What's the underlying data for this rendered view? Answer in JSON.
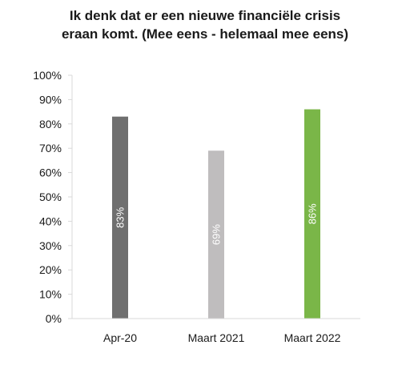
{
  "chart_data": {
    "type": "bar",
    "title_lines": [
      "Ik denk dat er een nieuwe financiële crisis",
      "eraan komt. (Mee eens - helemaal mee eens)"
    ],
    "categories": [
      "Apr-20",
      "Maart 2021",
      "Maart 2022"
    ],
    "values": [
      83,
      69,
      86
    ],
    "data_labels": [
      "83%",
      "69%",
      "86%"
    ],
    "bar_colors": [
      "#6f6f6f",
      "#bfbdbe",
      "#7ab648"
    ],
    "label_color": "#ffffff",
    "ylim": [
      0,
      100
    ],
    "yticks": [
      "0%",
      "10%",
      "20%",
      "30%",
      "40%",
      "50%",
      "60%",
      "70%",
      "80%",
      "90%",
      "100%"
    ],
    "grid": false,
    "legend": "none"
  }
}
